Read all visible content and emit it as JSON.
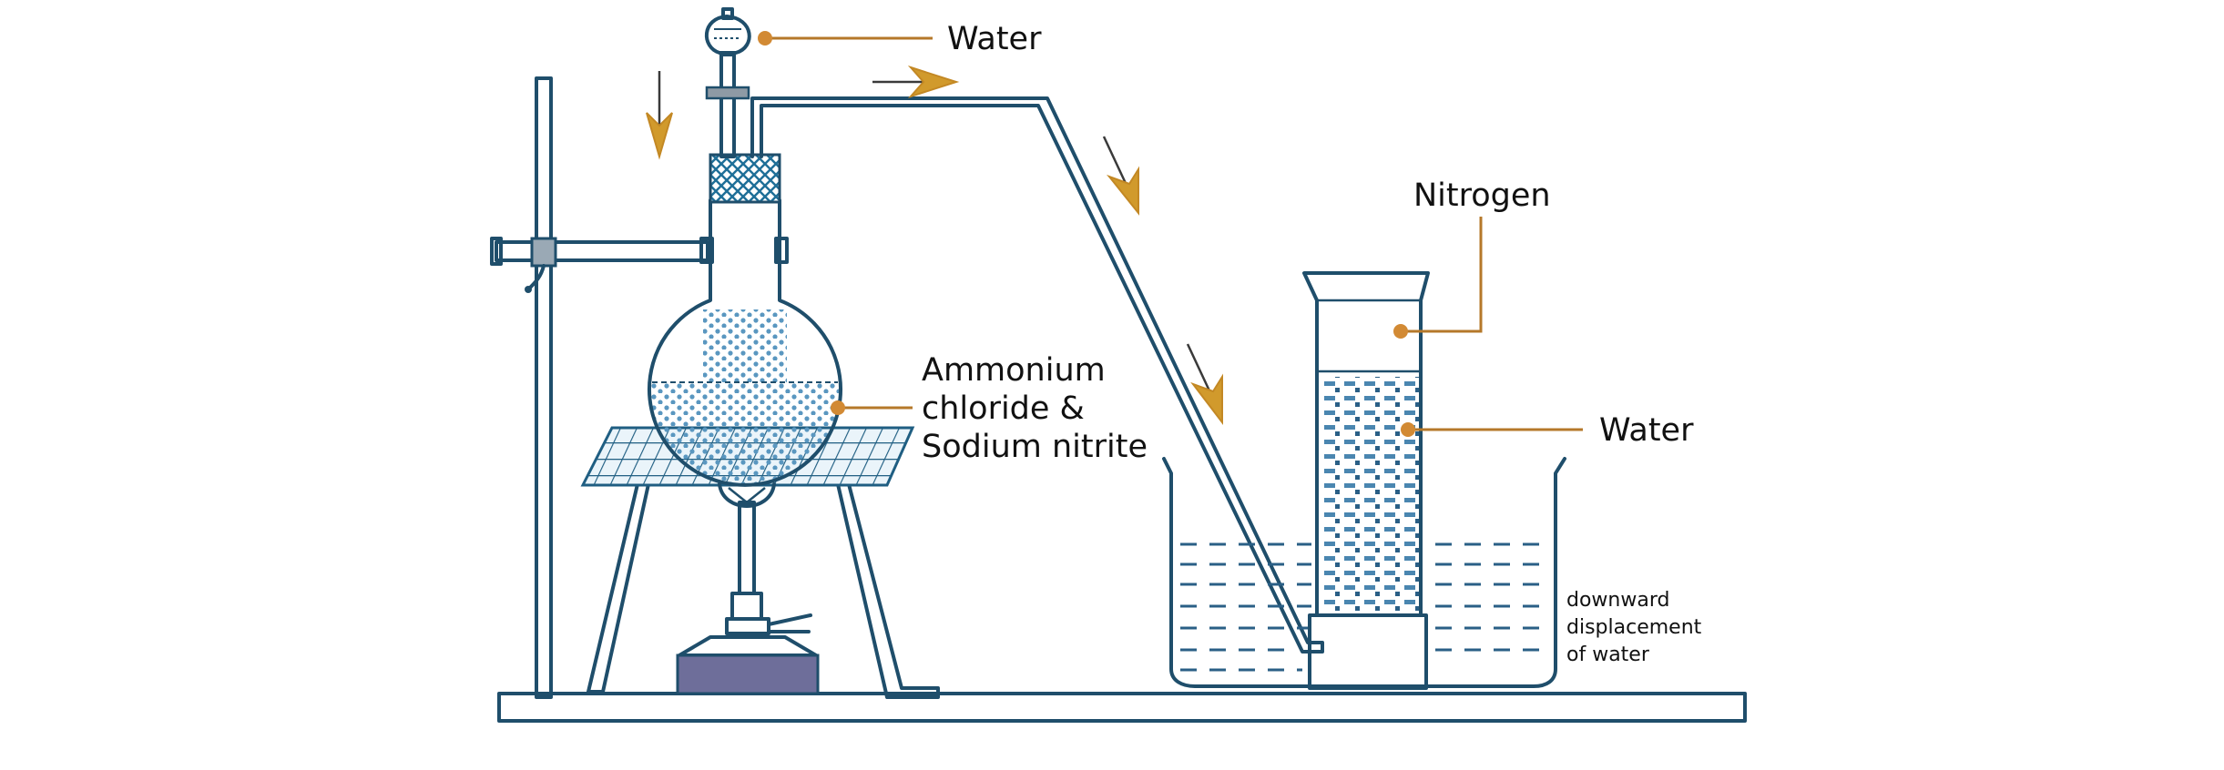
{
  "labels": {
    "water_top": "Water",
    "nitrogen": "Nitrogen",
    "reactants_line1": "Ammonium",
    "reactants_line2": "chloride &",
    "reactants_line3": "Sodium nitrite",
    "water_right": "Water",
    "displacement_line1": "downward",
    "displacement_line2": "displacement",
    "displacement_line3": "of water"
  },
  "colors": {
    "outline": "#1f4e6b",
    "leader": "#b5782a",
    "marker": "#d28a34",
    "arrow": "#d19a2c",
    "liquid": "#3f7fa8",
    "burner_base": "#6e6e9a"
  }
}
